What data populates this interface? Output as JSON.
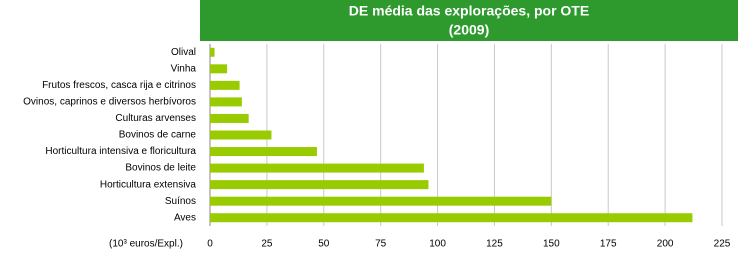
{
  "chart_data": {
    "type": "barh",
    "title": "DE média das explorações, por OTE",
    "subtitle": "(2009)",
    "xlabel": "(10³ euros/Expl.)",
    "categories": [
      "Olival",
      "Vinha",
      "Frutos frescos, casca rija e citrinos",
      "Ovinos, caprinos e diversos herbívoros",
      "Culturas arvenses",
      "Bovinos de carne",
      "Horticultura intensiva  e floricultura",
      "Bovinos de leite",
      "Horticultura extensiva",
      "Suínos",
      "Aves"
    ],
    "values": [
      2,
      7.5,
      13,
      14,
      17,
      27,
      47,
      94,
      96,
      150,
      212
    ],
    "color": "#99cc00",
    "xlim": [
      0,
      225
    ],
    "xticks": [
      0,
      25,
      50,
      75,
      100,
      125,
      150,
      175,
      200,
      225
    ],
    "grid": true
  }
}
